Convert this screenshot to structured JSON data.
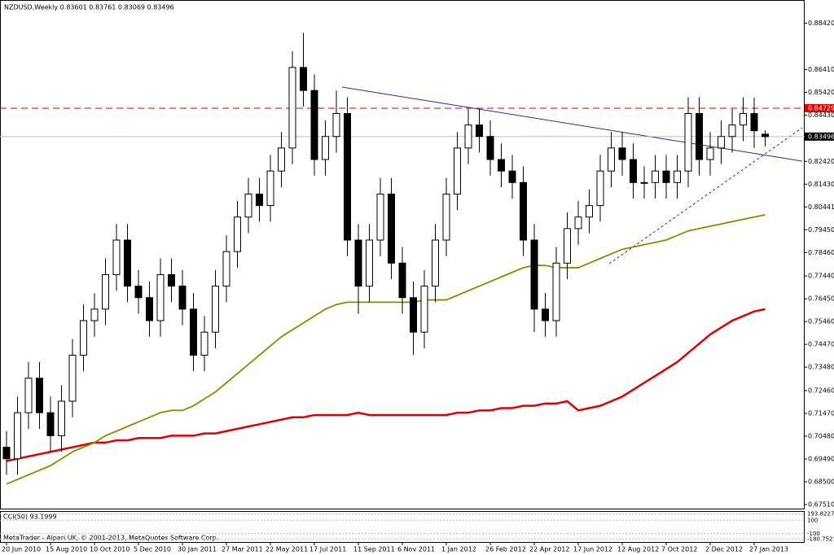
{
  "chart_data": {
    "type": "candlestick",
    "title": "NZDUSD,Weekly  0.83601 0.83761 0.83069 0.83496",
    "footer": "MetaTrader - Alpari UK, © 2001-2013, MetaQuotes Software Corp.",
    "categories": [
      "20 Jun 2010",
      null,
      null,
      null,
      "15 Aug 2010",
      null,
      null,
      null,
      "10 Oct 2010",
      null,
      null,
      null,
      "5 Dec 2010",
      null,
      null,
      null,
      "30 Jan 2011",
      null,
      null,
      null,
      "27 Mar 2011",
      null,
      null,
      null,
      "22 May 2011",
      null,
      null,
      null,
      "17 Jul 2011",
      null,
      null,
      null,
      "11 Sep 2011",
      null,
      null,
      null,
      "6 Nov 2011",
      null,
      null,
      null,
      "1 Jan 2012",
      null,
      null,
      null,
      "26 Feb 2012",
      null,
      null,
      null,
      "22 Apr 2012",
      null,
      null,
      null,
      "17 Jun 2012",
      null,
      null,
      null,
      "12 Aug 2012",
      null,
      null,
      null,
      "7 Oct 2012",
      null,
      null,
      null,
      "2 Dec 2012",
      null,
      null,
      null,
      "27 Jan 2013",
      null
    ],
    "open": [
      0.7,
      0.695,
      0.715,
      0.73,
      0.715,
      0.705,
      0.72,
      0.74,
      0.755,
      0.76,
      0.775,
      0.79,
      0.77,
      0.765,
      0.755,
      0.775,
      0.77,
      0.76,
      0.74,
      0.75,
      0.77,
      0.785,
      0.8,
      0.81,
      0.805,
      0.82,
      0.83,
      0.865,
      0.855,
      0.825,
      0.835,
      0.845,
      0.79,
      0.77,
      0.79,
      0.81,
      0.78,
      0.765,
      0.75,
      0.77,
      0.79,
      0.81,
      0.83,
      0.84,
      0.835,
      0.825,
      0.82,
      0.815,
      0.79,
      0.76,
      0.755,
      0.78,
      0.795,
      0.8,
      0.805,
      0.82,
      0.83,
      0.825,
      0.815,
      0.815,
      0.82,
      0.815,
      0.82,
      0.845,
      0.825,
      0.83,
      0.835,
      0.84,
      0.845,
      0.83601
    ],
    "high": [
      0.707,
      0.722,
      0.737,
      0.737,
      0.722,
      0.727,
      0.747,
      0.762,
      0.767,
      0.782,
      0.797,
      0.797,
      0.777,
      0.772,
      0.782,
      0.782,
      0.777,
      0.767,
      0.757,
      0.777,
      0.792,
      0.807,
      0.817,
      0.817,
      0.827,
      0.837,
      0.872,
      0.88,
      0.862,
      0.842,
      0.855,
      0.852,
      0.797,
      0.797,
      0.817,
      0.817,
      0.787,
      0.772,
      0.777,
      0.797,
      0.817,
      0.837,
      0.847,
      0.847,
      0.842,
      0.832,
      0.827,
      0.822,
      0.797,
      0.767,
      0.787,
      0.802,
      0.807,
      0.812,
      0.827,
      0.837,
      0.837,
      0.832,
      0.822,
      0.827,
      0.827,
      0.827,
      0.852,
      0.852,
      0.837,
      0.842,
      0.847,
      0.852,
      0.852,
      0.83761
    ],
    "low": [
      0.688,
      0.688,
      0.708,
      0.708,
      0.698,
      0.698,
      0.713,
      0.733,
      0.748,
      0.753,
      0.768,
      0.763,
      0.758,
      0.748,
      0.748,
      0.763,
      0.753,
      0.733,
      0.733,
      0.743,
      0.763,
      0.778,
      0.793,
      0.798,
      0.798,
      0.813,
      0.823,
      0.848,
      0.818,
      0.818,
      0.828,
      0.783,
      0.758,
      0.763,
      0.783,
      0.773,
      0.758,
      0.74,
      0.743,
      0.763,
      0.783,
      0.803,
      0.823,
      0.828,
      0.818,
      0.813,
      0.808,
      0.783,
      0.75,
      0.748,
      0.748,
      0.773,
      0.788,
      0.793,
      0.798,
      0.813,
      0.818,
      0.808,
      0.808,
      0.808,
      0.808,
      0.808,
      0.813,
      0.818,
      0.818,
      0.823,
      0.828,
      0.833,
      0.83,
      0.83069
    ],
    "close": [
      0.695,
      0.715,
      0.73,
      0.715,
      0.705,
      0.72,
      0.74,
      0.755,
      0.76,
      0.775,
      0.79,
      0.77,
      0.765,
      0.755,
      0.775,
      0.77,
      0.76,
      0.74,
      0.75,
      0.77,
      0.785,
      0.8,
      0.81,
      0.805,
      0.82,
      0.83,
      0.865,
      0.855,
      0.825,
      0.835,
      0.845,
      0.79,
      0.77,
      0.79,
      0.81,
      0.78,
      0.765,
      0.75,
      0.77,
      0.79,
      0.81,
      0.83,
      0.84,
      0.835,
      0.825,
      0.82,
      0.815,
      0.79,
      0.76,
      0.755,
      0.78,
      0.795,
      0.8,
      0.805,
      0.82,
      0.83,
      0.825,
      0.815,
      0.815,
      0.82,
      0.815,
      0.82,
      0.845,
      0.825,
      0.83,
      0.835,
      0.84,
      0.845,
      0.8375,
      0.83496
    ],
    "lines": [
      {
        "color": "#e00000",
        "values": [
          0.694,
          0.695,
          0.696,
          0.697,
          0.698,
          0.699,
          0.7,
          0.701,
          0.702,
          0.702,
          0.703,
          0.703,
          0.704,
          0.704,
          0.704,
          0.705,
          0.705,
          0.705,
          0.706,
          0.706,
          0.707,
          0.708,
          0.709,
          0.71,
          0.711,
          0.712,
          0.713,
          0.713,
          0.714,
          0.714,
          0.714,
          0.714,
          0.715,
          0.714,
          0.714,
          0.714,
          0.714,
          0.714,
          0.714,
          0.714,
          0.714,
          0.715,
          0.715,
          0.716,
          0.716,
          0.717,
          0.717,
          0.718,
          0.718,
          0.719,
          0.719,
          0.72,
          0.716,
          0.717,
          0.718,
          0.72,
          0.722,
          0.725,
          0.728,
          0.731,
          0.734,
          0.737,
          0.741,
          0.745,
          0.749,
          0.752,
          0.755,
          0.757,
          0.759,
          0.76
        ]
      },
      {
        "color": "#8b8b00",
        "values": [
          0.684,
          0.686,
          0.688,
          0.69,
          0.692,
          0.695,
          0.698,
          0.7,
          0.702,
          0.705,
          0.707,
          0.709,
          0.711,
          0.713,
          0.715,
          0.716,
          0.716,
          0.718,
          0.721,
          0.724,
          0.728,
          0.732,
          0.736,
          0.74,
          0.744,
          0.748,
          0.751,
          0.754,
          0.757,
          0.76,
          0.762,
          0.763,
          0.763,
          0.763,
          0.763,
          0.763,
          0.763,
          0.763,
          0.764,
          0.764,
          0.764,
          0.766,
          0.768,
          0.77,
          0.772,
          0.774,
          0.776,
          0.778,
          0.779,
          0.779,
          0.778,
          0.778,
          0.778,
          0.78,
          0.782,
          0.784,
          0.786,
          0.787,
          0.788,
          0.789,
          0.79,
          0.792,
          0.794,
          0.795,
          0.796,
          0.797,
          0.798,
          0.799,
          0.8,
          0.801
        ]
      }
    ],
    "levels": [
      {
        "value": 0.84729,
        "color": "#e00000"
      }
    ],
    "current_price": 0.83496,
    "ylim": [
      0.6751,
      0.8943
    ],
    "yticks": [
      {
        "value": 0.8842,
        "label": "0.88420"
      },
      {
        "value": 0.8641,
        "label": "0.86410"
      },
      {
        "value": 0.8542,
        "label": "0.85420"
      },
      {
        "value": 0.8443,
        "label": "0.84430"
      },
      {
        "value": 0.8242,
        "label": "0.82420"
      },
      {
        "value": 0.8143,
        "label": "0.81430"
      },
      0.80441,
      {
        "value": 0.7945,
        "label": "0.79450"
      },
      {
        "value": 0.7846,
        "label": "0.78460"
      },
      {
        "value": 0.7744,
        "label": "0.77440"
      },
      {
        "value": 0.7645,
        "label": "0.76450"
      },
      {
        "value": 0.7546,
        "label": "0.75460"
      },
      {
        "value": 0.7447,
        "label": "0.74470"
      },
      {
        "value": 0.7348,
        "label": "0.73480"
      },
      {
        "value": 0.7246,
        "label": "0.72460"
      },
      {
        "value": 0.7147,
        "label": "0.71470"
      },
      {
        "value": 0.7048,
        "label": "0.70480"
      },
      {
        "value": 0.6949,
        "label": "0.69490"
      },
      {
        "value": 0.685,
        "label": "0.68500"
      },
      {
        "value": 0.6751,
        "label": "0.67510"
      }
    ],
    "cci": {
      "label": "CCI(50) 93.1999",
      "ylim": [
        -200,
        200
      ],
      "yticks": [
        193.8227,
        100,
        -100,
        -180.7521
      ]
    }
  }
}
